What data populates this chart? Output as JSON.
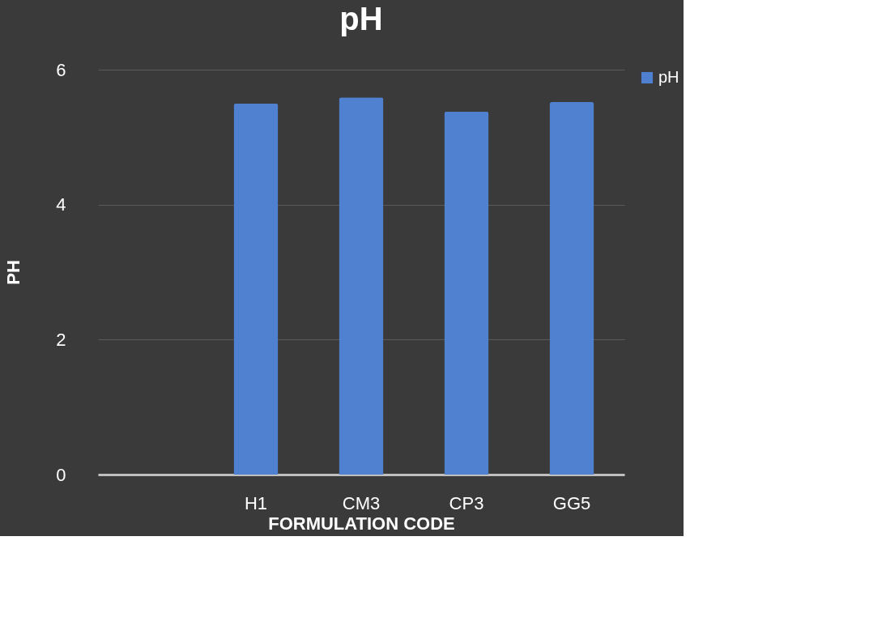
{
  "chart_data": {
    "type": "bar",
    "title": "pH",
    "xlabel": "FORMULATION CODE",
    "ylabel": "PH",
    "categories": [
      null,
      "H1",
      "CM3",
      "CP3",
      "GG5"
    ],
    "series": [
      {
        "name": "pH",
        "color": "#4f81d0",
        "values": [
          null,
          5.5,
          5.59,
          5.38,
          5.52
        ]
      }
    ],
    "ylim": [
      0,
      6
    ],
    "yticks": [
      0,
      2,
      4,
      6
    ],
    "grid": "y",
    "legend": "right"
  }
}
